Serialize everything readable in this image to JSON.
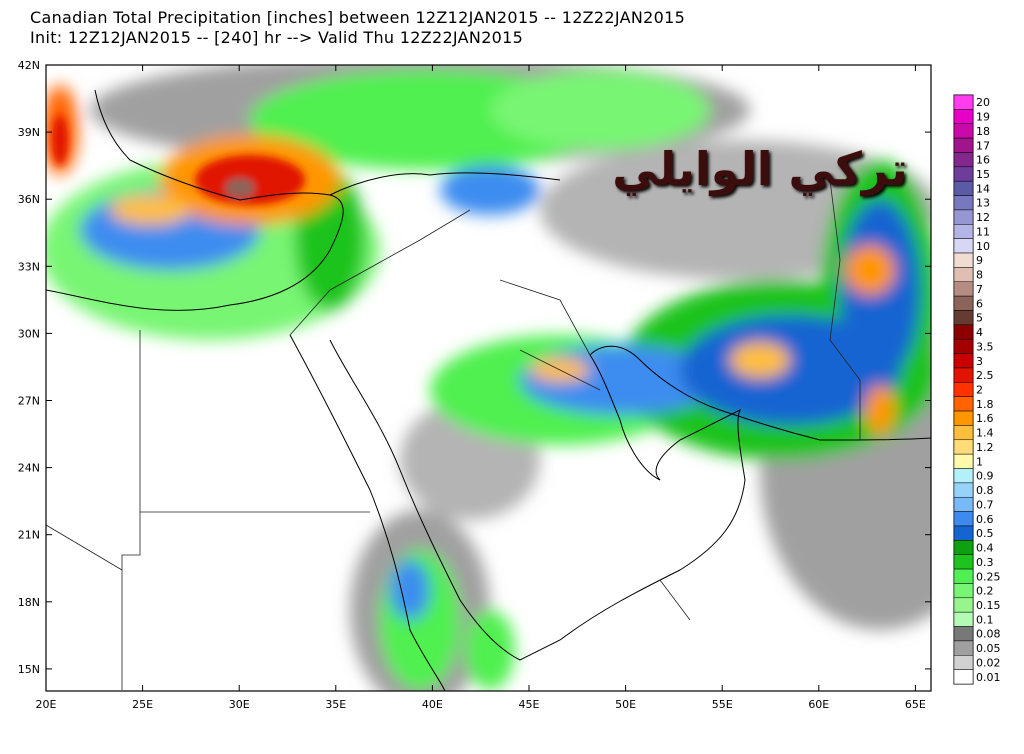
{
  "header": {
    "title": "Canadian Total Precipitation [inches] between 12Z12JAN2015 -- 12Z22JAN2015",
    "subtitle": "Init: 12Z12JAN2015 -- [240] hr --> Valid Thu 12Z22JAN2015"
  },
  "map": {
    "lat_labels": [
      "42N",
      "39N",
      "36N",
      "33N",
      "30N",
      "27N",
      "24N",
      "21N",
      "18N",
      "15N"
    ],
    "lon_labels": [
      "20E",
      "25E",
      "30E",
      "35E",
      "40E",
      "45E",
      "50E",
      "55E",
      "60E",
      "65E"
    ],
    "watermark": "تركي الوايلي"
  },
  "colorbar": {
    "labels": [
      "20",
      "19",
      "18",
      "17",
      "16",
      "15",
      "14",
      "13",
      "12",
      "11",
      "10",
      "9",
      "8",
      "7",
      "6",
      "5",
      "4",
      "3.5",
      "3",
      "2.5",
      "2",
      "1.8",
      "1.6",
      "1.4",
      "1.2",
      "1",
      "0.9",
      "0.8",
      "0.7",
      "0.6",
      "0.5",
      "0.4",
      "0.3",
      "0.25",
      "0.2",
      "0.15",
      "0.1",
      "0.08",
      "0.05",
      "0.02",
      "0.01"
    ],
    "colors": [
      "#ff3cf0",
      "#e600c8",
      "#c80aaa",
      "#a0148c",
      "#82288c",
      "#6e3c9b",
      "#5a5aa5",
      "#7878be",
      "#9696d2",
      "#b4b4e6",
      "#d7d7f5",
      "#f0dcd2",
      "#e1beb4",
      "#b48c82",
      "#8c645a",
      "#643c32",
      "#8c0000",
      "#a50000",
      "#c80000",
      "#e11400",
      "#ff3200",
      "#ff6400",
      "#ff9600",
      "#ffbe3c",
      "#ffdc78",
      "#fffaaa",
      "#b4f0fa",
      "#96d2fa",
      "#78b9fa",
      "#3c8cf0",
      "#1464d2",
      "#0fa00f",
      "#1ec31e",
      "#50f050",
      "#78f573",
      "#96f58c",
      "#b4fab4",
      "#787878",
      "#a0a0a0",
      "#d2d2d2",
      "#ffffff"
    ]
  }
}
